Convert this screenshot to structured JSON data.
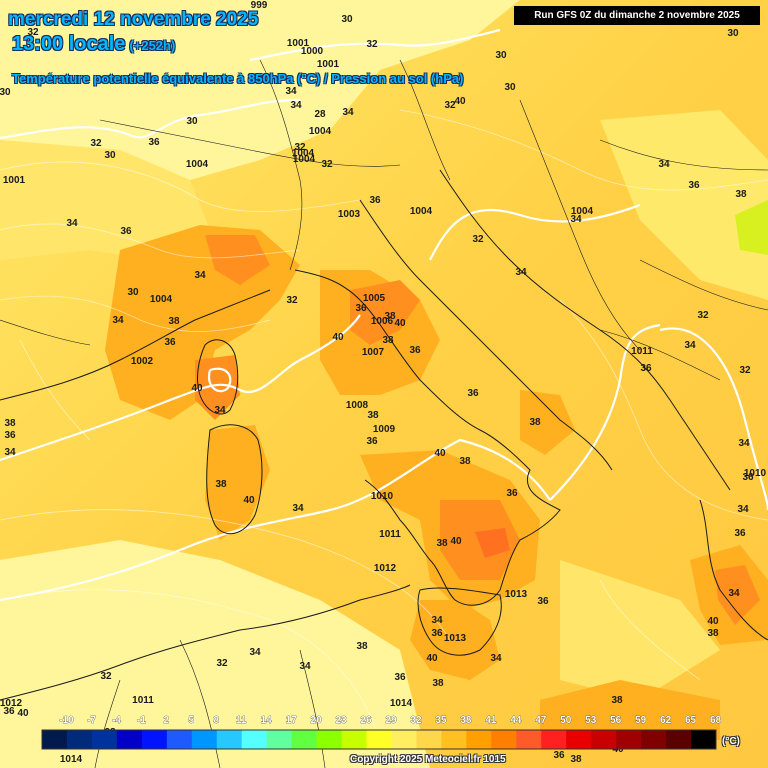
{
  "header": {
    "date": "mercredi 12 novembre 2025",
    "hour": "13:00 locale",
    "lead": "(+252h)",
    "parameter": "Température potentielle équivalente à 850hPa (°C) / Pression au sol (hPa)",
    "run": "Run GFS 0Z du dimanche 2 novembre 2025"
  },
  "footer": {
    "copyright": "Copyright 2025 Meteociel.fr 1015",
    "scale_unit": "(°C)"
  },
  "scale": {
    "labels": [
      "-10",
      "-7",
      "-4",
      "-1",
      "2",
      "5",
      "8",
      "11",
      "14",
      "17",
      "20",
      "23",
      "26",
      "29",
      "32",
      "35",
      "38",
      "41",
      "44",
      "47",
      "50",
      "53",
      "56",
      "59",
      "62",
      "65",
      "68"
    ],
    "colors": [
      "#001a4d",
      "#002a7a",
      "#00329e",
      "#0000c8",
      "#0014ff",
      "#1e5aff",
      "#0096ff",
      "#26c8ff",
      "#55ffff",
      "#60ff9f",
      "#60ff40",
      "#8cff00",
      "#c8ff00",
      "#ffff28",
      "#ffee60",
      "#ffd84a",
      "#ffc020",
      "#ffa000",
      "#ff8000",
      "#ff5a2a",
      "#ff2020",
      "#e80000",
      "#c80000",
      "#a00000",
      "#800000",
      "#5a0000",
      "#000000"
    ]
  },
  "map_labels": {
    "temperature": [
      "30",
      "32",
      "30",
      "30",
      "28",
      "30",
      "32",
      "30",
      "32",
      "30",
      "36",
      "34",
      "32",
      "30",
      "36",
      "34",
      "36",
      "34",
      "32",
      "30",
      "34",
      "36",
      "38",
      "40",
      "34",
      "38",
      "40",
      "34",
      "36",
      "38",
      "40",
      "36",
      "38",
      "40",
      "38",
      "36",
      "34",
      "32",
      "34",
      "36",
      "38",
      "40",
      "34",
      "36",
      "38",
      "34",
      "40",
      "38",
      "36",
      "34",
      "40",
      "38",
      "36",
      "38",
      "40",
      "38",
      "36",
      "34",
      "32",
      "34",
      "36",
      "32",
      "34",
      "38",
      "36",
      "34",
      "32",
      "34",
      "36",
      "40",
      "38",
      "36",
      "38",
      "36",
      "34",
      "32",
      "34",
      "36",
      "38",
      "40",
      "34",
      "32",
      "34",
      "32",
      "36",
      "38",
      "40"
    ],
    "pressure": [
      "999",
      "1001",
      "1000",
      "1001",
      "1004",
      "1004",
      "1004",
      "1004",
      "1001",
      "1003",
      "1004",
      "1004",
      "1005",
      "1006",
      "1007",
      "1004",
      "1002",
      "1008",
      "1009",
      "1010",
      "1011",
      "1012",
      "1013",
      "1013",
      "1014",
      "1011",
      "1012",
      "1011",
      "1010",
      "1014"
    ]
  }
}
